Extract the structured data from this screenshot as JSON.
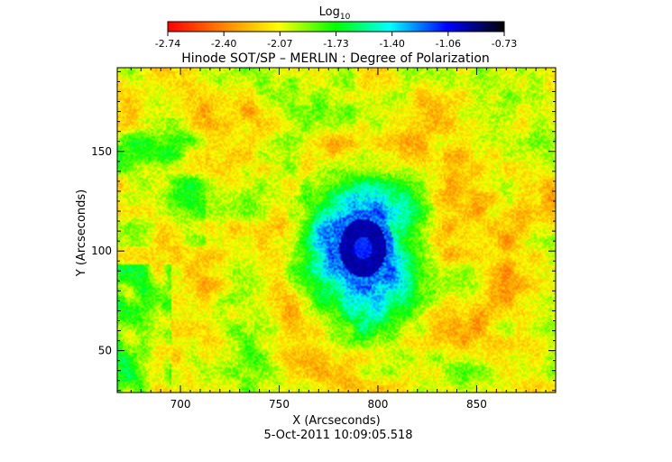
{
  "chart_data": {
    "type": "heatmap",
    "title": "Hinode SOT/SP – MERLIN : Degree of Polarization",
    "xlabel": "X (Arcseconds)",
    "ylabel": "Y (Arcseconds)",
    "xlim": [
      668,
      890
    ],
    "ylim": [
      29,
      192
    ],
    "x_ticks": [
      700,
      750,
      800,
      850
    ],
    "y_ticks": [
      50,
      100,
      150
    ],
    "colorbar": {
      "label_base": "Log",
      "label_sub": "10",
      "ticks": [
        "-2.74",
        "-2.40",
        "-2.07",
        "-1.73",
        "-1.40",
        "-1.06",
        "-0.73"
      ],
      "range": [
        -2.74,
        -0.73
      ],
      "colors": [
        "#ff0000",
        "#ff8800",
        "#ffff00",
        "#00ff00",
        "#00ffff",
        "#0000ff",
        "#000000"
      ]
    },
    "features": [
      {
        "name": "sunspot umbra",
        "cx": 792,
        "cy": 102,
        "value": -0.9
      }
    ],
    "timestamp": "5-Oct-2011 10:09:05.518"
  }
}
